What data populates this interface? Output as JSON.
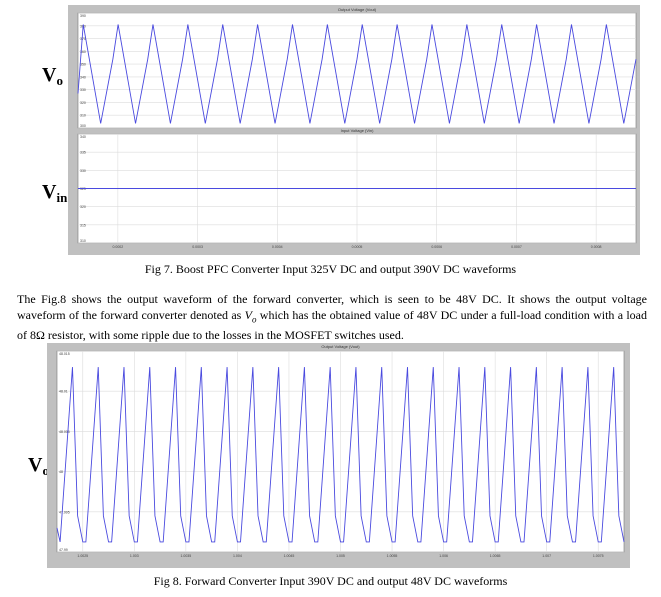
{
  "figure7": {
    "label_top_main": "V",
    "label_top_sub": "o",
    "label_bottom_main": "V",
    "label_bottom_sub": "in",
    "caption": "Fig 7. Boost PFC Converter Input 325V DC and output 390V DC waveforms",
    "chart_data": [
      {
        "type": "line",
        "title": "Output Voltage (Vout)",
        "y_ticks": [
          "390",
          "380",
          "370",
          "360",
          "350",
          "340",
          "330",
          "320",
          "310",
          "300"
        ],
        "series": [
          {
            "shape": "triangle-wave",
            "cycles": 16,
            "min_frac": 0.04,
            "max_frac": 0.9
          }
        ],
        "grid": true,
        "color": "#4a4adf"
      },
      {
        "type": "line",
        "title": "Input Voltage (Vin)",
        "y_ticks": [
          "340",
          "335",
          "330",
          "325",
          "320",
          "315",
          "310"
        ],
        "x_ticks": [
          "0.0002",
          "0.0003",
          "0.0004",
          "0.0005",
          "0.0006",
          "0.0007",
          "0.0008"
        ],
        "series": [
          {
            "shape": "flat",
            "value": 325
          }
        ],
        "grid": true,
        "color": "#4a4adf"
      }
    ]
  },
  "paragraph": {
    "part1": "The Fig.8 shows the output waveform of the forward converter, which is seen to be 48V DC. It shows the output voltage waveform of the forward converter denoted as ",
    "vo_main": "V",
    "vo_sub": "o",
    "part2": " which has the obtained value of 48V DC under a full-load condition with a  load of 8Ω resistor, with some ripple due to the losses in the MOSFET switches used."
  },
  "figure8": {
    "label_main": "V",
    "label_sub": "o",
    "caption": "Fig 8. Forward Converter Input 390V DC and output 48V DC waveforms",
    "chart_data": {
      "type": "line",
      "title": "Output Voltage (Vout)",
      "y_ticks": [
        "48.015",
        "48.01",
        "48.005",
        "48",
        "47.995",
        "47.99"
      ],
      "x_ticks": [
        "1.0025",
        "1.003",
        "1.0035",
        "1.004",
        "1.0045",
        "1.005",
        "1.0055",
        "1.006",
        "1.0065",
        "1.007",
        "1.0075"
      ],
      "series": [
        {
          "shape": "sawtooth-ripple",
          "cycles": 22
        }
      ],
      "grid": true,
      "color": "#4a4adf"
    }
  }
}
